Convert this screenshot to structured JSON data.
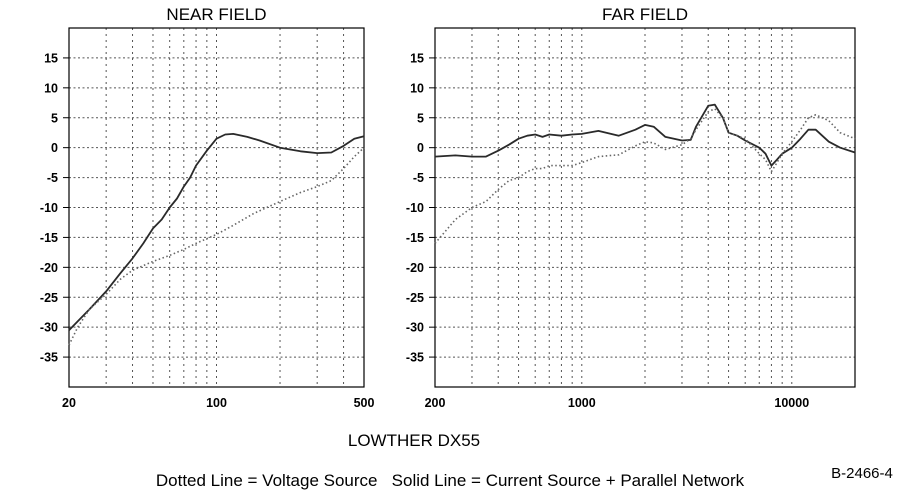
{
  "caption": {
    "model": "LOWTHER DX55",
    "legend": "Dotted Line = Voltage Source   Solid Line = Current Source + Parallel Network",
    "code": "B-2466-4"
  },
  "chart_data": [
    {
      "type": "line",
      "title": "NEAR FIELD",
      "x_scale": "log",
      "xlim": [
        20,
        500
      ],
      "ylim": [
        -40,
        20
      ],
      "x_tick_labels": [
        "20",
        "100",
        "500"
      ],
      "x_tick_values": [
        20,
        100,
        500
      ],
      "y_ticks": [
        15,
        10,
        5,
        0,
        -5,
        -10,
        -15,
        -20,
        -25,
        -30,
        -35
      ],
      "grid": true,
      "series": [
        {
          "style": "solid",
          "x": [
            20,
            25,
            30,
            35,
            40,
            45,
            50,
            55,
            60,
            65,
            70,
            75,
            80,
            90,
            100,
            110,
            120,
            140,
            160,
            200,
            250,
            300,
            350,
            400,
            450,
            500
          ],
          "y": [
            -30.5,
            -27,
            -24,
            -21,
            -18.5,
            -16,
            -13.5,
            -12,
            -10,
            -8.5,
            -6.5,
            -5,
            -3,
            -0.5,
            1.5,
            2.2,
            2.3,
            1.8,
            1.2,
            0,
            -0.6,
            -0.9,
            -0.8,
            0.3,
            1.5,
            1.9
          ]
        },
        {
          "style": "dotted",
          "x": [
            20,
            22,
            25,
            30,
            35,
            40,
            50,
            60,
            70,
            80,
            100,
            120,
            150,
            200,
            250,
            300,
            350,
            400,
            450,
            500
          ],
          "y": [
            -33,
            -30,
            -27,
            -24.5,
            -22,
            -20.5,
            -19,
            -18,
            -17,
            -16,
            -14.5,
            -13,
            -11,
            -9,
            -7.5,
            -6.5,
            -5.5,
            -3.5,
            -1.5,
            0
          ]
        }
      ]
    },
    {
      "type": "line",
      "title": "FAR FIELD",
      "x_scale": "log",
      "xlim": [
        200,
        20000
      ],
      "ylim": [
        -40,
        20
      ],
      "x_tick_labels": [
        "200",
        "1000",
        "10000"
      ],
      "x_tick_values": [
        200,
        1000,
        10000
      ],
      "y_ticks": [
        15,
        10,
        5,
        0,
        -5,
        -10,
        -15,
        -20,
        -25,
        -30,
        -35
      ],
      "grid": true,
      "series": [
        {
          "style": "solid",
          "x": [
            200,
            250,
            300,
            350,
            400,
            450,
            500,
            550,
            600,
            650,
            700,
            800,
            900,
            1000,
            1200,
            1500,
            1800,
            2000,
            2200,
            2500,
            3000,
            3300,
            3500,
            4000,
            4300,
            4700,
            5000,
            5500,
            6000,
            7000,
            7500,
            8000,
            8500,
            9000,
            10000,
            11000,
            12000,
            13000,
            15000,
            17000,
            20000
          ],
          "y": [
            -1.5,
            -1.3,
            -1.5,
            -1.5,
            -0.5,
            0.5,
            1.5,
            2.0,
            2.2,
            1.8,
            2.2,
            2.0,
            2.2,
            2.3,
            2.8,
            2.0,
            3.0,
            3.8,
            3.5,
            1.8,
            1.2,
            1.3,
            3.5,
            7.0,
            7.2,
            5.0,
            2.5,
            2.0,
            1.2,
            0.0,
            -1.0,
            -3.0,
            -2.0,
            -1.0,
            0.0,
            1.5,
            3.0,
            3.0,
            1.0,
            0.0,
            -0.8
          ]
        },
        {
          "style": "dotted",
          "x": [
            200,
            250,
            300,
            350,
            400,
            450,
            500,
            550,
            600,
            650,
            700,
            800,
            900,
            1000,
            1200,
            1500,
            1800,
            2000,
            2200,
            2500,
            3000,
            3300,
            3500,
            4000,
            4300,
            4700,
            5000,
            5500,
            6000,
            7000,
            7500,
            8000,
            8500,
            9000,
            10000,
            11000,
            12000,
            13000,
            15000,
            17000,
            20000
          ],
          "y": [
            -16,
            -12,
            -10,
            -9,
            -7,
            -5.5,
            -5,
            -4,
            -3.5,
            -3.5,
            -3,
            -3,
            -3,
            -2.5,
            -1.5,
            -1.2,
            0.3,
            1.0,
            0.8,
            -0.3,
            0.5,
            1.5,
            3.0,
            6.0,
            6.5,
            5.0,
            2.5,
            2.0,
            1.5,
            -1.0,
            -2.0,
            -4.0,
            -2.5,
            -1.0,
            1.0,
            3.0,
            5.0,
            5.5,
            4.5,
            2.5,
            1.5
          ]
        }
      ]
    }
  ]
}
